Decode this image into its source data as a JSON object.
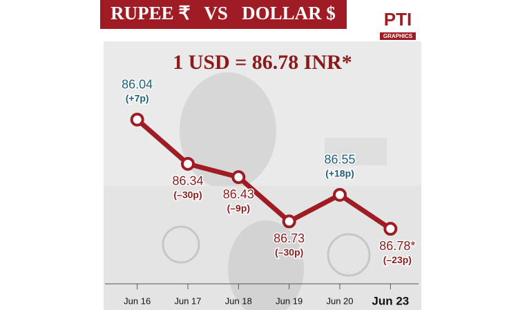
{
  "chart_data": {
    "type": "line",
    "title": "RUPEE ₹   VS   DOLLAR $",
    "headline": "1 USD = 86.78 INR*",
    "logo": "PTI",
    "logo_subtitle": "GRAPHICS",
    "categories": [
      "Jun 16",
      "Jun 17",
      "Jun 18",
      "Jun 19",
      "Jun 20",
      "Jun 23"
    ],
    "values": [
      86.04,
      86.34,
      86.43,
      86.73,
      86.55,
      86.78
    ],
    "value_labels": [
      "86.04",
      "86.34",
      "86.43",
      "86.73",
      "86.55",
      "86.78*"
    ],
    "change_labels": [
      "(+7p)",
      "(–30p)",
      "(–9p)",
      "(–30p)",
      "(+18p)",
      "(–23p)"
    ],
    "label_colors": [
      "#1f5f7a",
      "#8b1a1a",
      "#8b1a1a",
      "#8b1a1a",
      "#1f5f7a",
      "#8b1a1a"
    ],
    "color": "#a01c24",
    "ylim": [
      87.33,
      85.51
    ]
  }
}
